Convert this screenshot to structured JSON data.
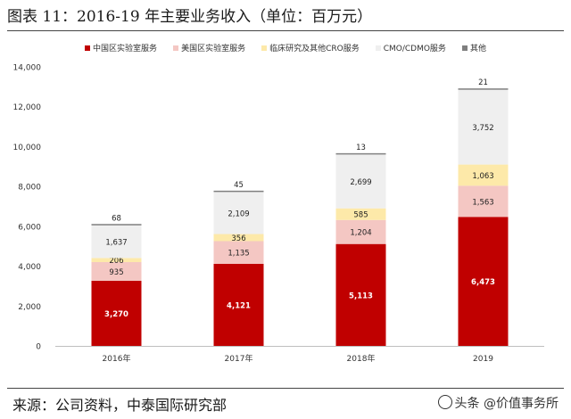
{
  "title": "图表 11：2016-19 年主要业务收入（单位：百万元）",
  "source": "来源：公司资料，中泰国际研究部",
  "watermark": "头条 @价值事务所",
  "chart_data": {
    "type": "bar",
    "stacked": true,
    "categories": [
      "2016年",
      "2017年",
      "2018年",
      "2019"
    ],
    "series": [
      {
        "name": "中国区实验室服务",
        "color": "#c00000",
        "values": [
          3270,
          4121,
          5113,
          6473
        ],
        "labels": [
          "3,270",
          "4,121",
          "5,113",
          "6,473"
        ],
        "label_color": "#ffffff"
      },
      {
        "name": "美国区实验室服务",
        "color": "#f4c7c3",
        "values": [
          935,
          1135,
          1204,
          1563
        ],
        "labels": [
          "935",
          "1,135",
          "1,204",
          "1,563"
        ],
        "label_color": "#222222"
      },
      {
        "name": "临床研究及其他CRO服务",
        "color": "#fde9a9",
        "values": [
          206,
          356,
          585,
          1063
        ],
        "labels": [
          "206",
          "356",
          "585",
          "1,063"
        ],
        "label_color": "#222222"
      },
      {
        "name": "CMO/CDMO服务",
        "color": "#efefef",
        "values": [
          1637,
          2109,
          2699,
          3752
        ],
        "labels": [
          "1,637",
          "2,109",
          "2,699",
          "3,752"
        ],
        "label_color": "#222222"
      },
      {
        "name": "其他",
        "color": "#7f7f7f",
        "values": [
          68,
          45,
          13,
          21
        ],
        "labels": [
          "68",
          "45",
          "13",
          "21"
        ],
        "label_color": "#222222"
      }
    ],
    "ylim": [
      0,
      14000
    ],
    "yticks": [
      0,
      2000,
      4000,
      6000,
      8000,
      10000,
      12000,
      14000
    ],
    "ytick_labels": [
      "0",
      "2,000",
      "4,000",
      "6,000",
      "8,000",
      "10,000",
      "12,000",
      "14,000"
    ],
    "legend_position": "top",
    "grid": false
  }
}
